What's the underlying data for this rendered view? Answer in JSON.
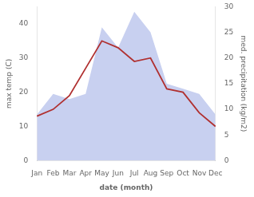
{
  "chart_data": {
    "type": "line",
    "categories": [
      "Jan",
      "Feb",
      "Mar",
      "Apr",
      "May",
      "Jun",
      "Jul",
      "Aug",
      "Sep",
      "Oct",
      "Nov",
      "Dec"
    ],
    "series": [
      {
        "type": "area",
        "color": "#c8d0f0",
        "axis": "y2",
        "values": [
          9,
          13,
          12,
          13,
          26,
          22,
          29,
          25,
          15,
          14,
          13,
          9
        ]
      },
      {
        "type": "line",
        "color": "#b03030",
        "values": [
          13,
          15,
          19,
          27,
          35,
          33,
          29,
          30,
          21,
          20,
          14,
          10
        ]
      }
    ],
    "xlabel": "date (month)",
    "ylabel": "max temp (C)",
    "y2label": "med. precipitation (kg/m2)",
    "ylim": [
      0,
      45
    ],
    "yticks": [
      0,
      10,
      20,
      30,
      40
    ],
    "y2lim": [
      0,
      30
    ],
    "y2ticks": [
      0,
      5,
      10,
      15,
      20,
      25,
      30
    ],
    "grid": false
  }
}
